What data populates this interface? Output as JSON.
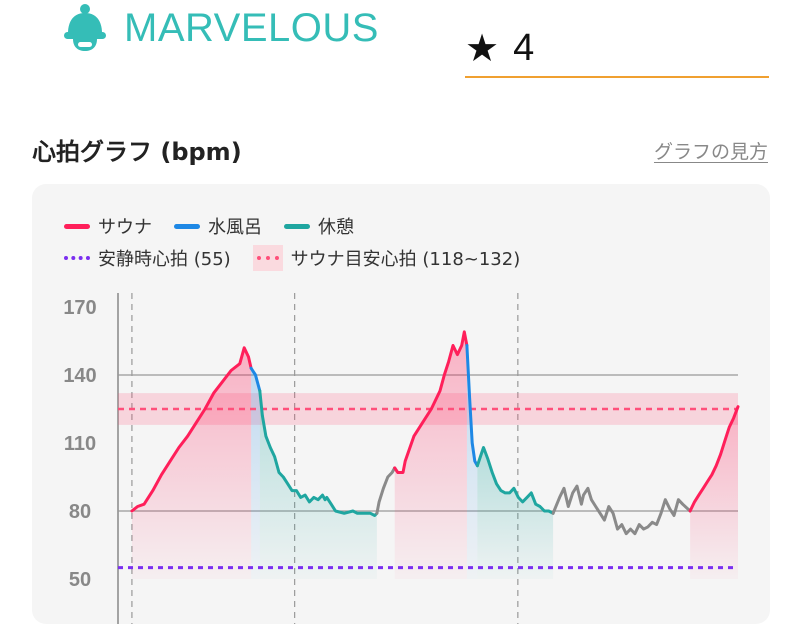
{
  "header": {
    "brand": "MARVELOUS",
    "rating_icon": "star-icon",
    "rating": "4"
  },
  "section": {
    "title": "心拍グラフ (bpm)",
    "help_link": "グラフの見方"
  },
  "colors": {
    "brand": "#35bdb7",
    "sauna": "#ff1f5a",
    "bath": "#1e88e5",
    "rest": "#1fa6a0",
    "other": "#8a8a8a",
    "resting_hr": "#7b2ff0",
    "target_band": "#ff4f7a",
    "underline": "#f0a030"
  },
  "legend": {
    "sauna": "サウナ",
    "bath": "水風呂",
    "rest": "休憩",
    "resting": "安静時心拍 (55)",
    "target": "サウナ目安心拍 (118~132)"
  },
  "chart_data": {
    "type": "line",
    "ylim": [
      50,
      170
    ],
    "ytick_labels": [
      "170",
      "140",
      "110",
      "80",
      "50"
    ],
    "yticks": [
      170,
      140,
      110,
      80,
      50
    ],
    "grid": true,
    "x_range": [
      0,
      100
    ],
    "reference_lines": {
      "resting_hr": 55,
      "sauna_target_low": 118,
      "sauna_target_high": 132,
      "sauna_target_mid": 125
    },
    "segment_boundaries": [
      3.2,
      40.6,
      91.9
    ],
    "series": [
      {
        "name": "サウナ",
        "kind": "sauna",
        "points": [
          [
            3.2,
            80
          ],
          [
            4.5,
            82
          ],
          [
            6,
            83
          ],
          [
            8,
            89
          ],
          [
            10,
            96
          ],
          [
            12,
            102
          ],
          [
            14,
            108
          ],
          [
            16,
            113
          ],
          [
            18,
            119
          ],
          [
            20,
            125
          ],
          [
            22,
            132
          ],
          [
            24,
            137
          ],
          [
            26,
            142
          ],
          [
            28,
            145
          ],
          [
            29,
            152
          ],
          [
            30,
            148
          ],
          [
            30.6,
            143
          ]
        ]
      },
      {
        "name": "水風呂",
        "kind": "bath",
        "points": [
          [
            30.6,
            143
          ],
          [
            31.6,
            140
          ],
          [
            32.6,
            133
          ]
        ]
      },
      {
        "name": "休憩",
        "kind": "rest",
        "points": [
          [
            32.6,
            133
          ],
          [
            33.2,
            122
          ],
          [
            34,
            113
          ],
          [
            35,
            108
          ],
          [
            36,
            104
          ],
          [
            37,
            97
          ],
          [
            38,
            95
          ],
          [
            39,
            92
          ],
          [
            40,
            89
          ],
          [
            41,
            89
          ],
          [
            42,
            86
          ],
          [
            43,
            87
          ],
          [
            44,
            84
          ],
          [
            45,
            86
          ],
          [
            46,
            85
          ],
          [
            47,
            87
          ],
          [
            47.6,
            85
          ],
          [
            48,
            86
          ],
          [
            49,
            83
          ],
          [
            50,
            80
          ],
          [
            52,
            79
          ],
          [
            54,
            80
          ],
          [
            55,
            79
          ],
          [
            56,
            79
          ],
          [
            57,
            79
          ],
          [
            58,
            79
          ],
          [
            59,
            78
          ],
          [
            59.5,
            79
          ]
        ]
      },
      {
        "name": "",
        "kind": "other",
        "points": [
          [
            59.5,
            79
          ],
          [
            60,
            84
          ],
          [
            61,
            90
          ],
          [
            62,
            95
          ],
          [
            63,
            97
          ],
          [
            63.6,
            99
          ]
        ]
      },
      {
        "name": "サウナ",
        "kind": "sauna",
        "points": [
          [
            63.6,
            99
          ],
          [
            64.3,
            97
          ],
          [
            65.5,
            97
          ],
          [
            66,
            102
          ],
          [
            68,
            113
          ],
          [
            70,
            119
          ],
          [
            72,
            125
          ],
          [
            74,
            133
          ],
          [
            75,
            140
          ],
          [
            76,
            146
          ],
          [
            77,
            153
          ],
          [
            78,
            149
          ],
          [
            79,
            153
          ],
          [
            79.6,
            159
          ],
          [
            80.2,
            153
          ]
        ]
      },
      {
        "name": "水風呂",
        "kind": "bath",
        "points": [
          [
            80.2,
            153
          ],
          [
            80.8,
            130
          ],
          [
            81.4,
            110
          ],
          [
            82,
            102
          ],
          [
            82.6,
            100
          ]
        ]
      },
      {
        "name": "休憩",
        "kind": "rest",
        "points": [
          [
            82.6,
            100
          ],
          [
            83.3,
            104
          ],
          [
            84,
            108
          ],
          [
            85,
            103
          ],
          [
            86,
            97
          ],
          [
            87,
            92
          ],
          [
            88,
            89
          ],
          [
            89,
            88
          ],
          [
            90,
            88
          ],
          [
            91,
            90
          ],
          [
            92,
            86
          ],
          [
            93,
            84
          ],
          [
            94,
            86
          ],
          [
            95,
            88
          ],
          [
            96,
            83
          ],
          [
            97,
            82
          ],
          [
            98,
            80
          ],
          [
            99,
            80
          ],
          [
            100,
            79
          ]
        ]
      },
      {
        "name": "",
        "kind": "other",
        "points": [
          [
            100,
            79
          ],
          [
            101.5,
            86
          ],
          [
            102.5,
            90
          ],
          [
            103.5,
            82
          ],
          [
            104.5,
            88
          ],
          [
            105.5,
            91
          ],
          [
            106.5,
            83
          ],
          [
            107,
            87
          ],
          [
            108,
            90
          ],
          [
            108.8,
            85
          ],
          [
            109.8,
            82
          ],
          [
            110.8,
            79
          ],
          [
            111.8,
            76
          ],
          [
            112.8,
            82
          ],
          [
            113.8,
            79
          ],
          [
            114.8,
            72
          ],
          [
            115.8,
            74
          ],
          [
            116.8,
            70
          ],
          [
            117.8,
            72
          ],
          [
            118.8,
            70
          ],
          [
            119.8,
            74
          ],
          [
            120.8,
            72
          ],
          [
            121.8,
            73
          ],
          [
            122.8,
            75
          ],
          [
            123.8,
            74
          ],
          [
            124.8,
            79
          ],
          [
            125.8,
            85
          ],
          [
            126.8,
            81
          ],
          [
            127.8,
            78
          ],
          [
            128.8,
            85
          ],
          [
            129.8,
            83
          ],
          [
            131.5,
            80
          ]
        ]
      },
      {
        "name": "サウナ",
        "kind": "sauna",
        "points": [
          [
            131.5,
            80
          ],
          [
            132.5,
            84
          ],
          [
            133.5,
            87
          ],
          [
            134.5,
            90
          ],
          [
            135.5,
            93
          ],
          [
            136.5,
            96
          ],
          [
            137.5,
            100
          ],
          [
            138.5,
            105
          ],
          [
            139.5,
            111
          ],
          [
            140.5,
            117
          ],
          [
            141.5,
            121
          ],
          [
            142.5,
            126
          ]
        ]
      }
    ]
  }
}
